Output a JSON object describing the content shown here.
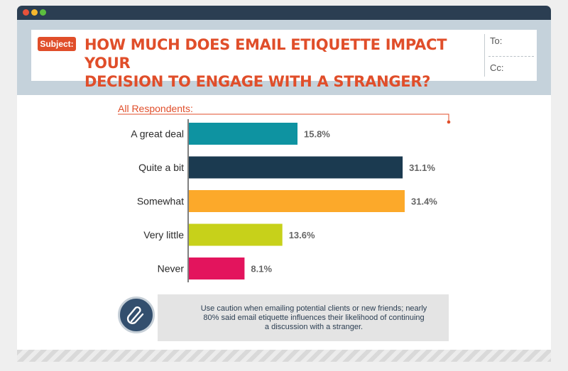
{
  "window": {
    "controls": [
      "close-dot",
      "minimize-dot",
      "maximize-dot"
    ]
  },
  "email": {
    "subject_label": "Subject:",
    "subject_line1": "HOW MUCH DOES EMAIL ETIQUETTE IMPACT YOUR",
    "subject_line2": "DECISION TO ENGAGE WITH A STRANGER?",
    "to_label": "To:",
    "cc_label": "Cc:"
  },
  "chart_data": {
    "type": "bar",
    "orientation": "horizontal",
    "title": "All Respondents:",
    "categories": [
      "A great deal",
      "Quite a bit",
      "Somewhat",
      "Very little",
      "Never"
    ],
    "values": [
      15.8,
      31.1,
      31.4,
      13.6,
      8.1
    ],
    "value_labels": [
      "15.8%",
      "31.1%",
      "31.4%",
      "13.6%",
      "8.1%"
    ],
    "colors": [
      "#0e93a1",
      "#1b3a50",
      "#fca92a",
      "#c7d11a",
      "#e3145d"
    ],
    "unit": "%",
    "xlim": [
      0,
      32
    ],
    "grid": false
  },
  "callout": {
    "icon": "paperclip-icon",
    "text_line1": "Use caution when emailing potential clients or new friends; nearly",
    "text_line2": "80% said email etiquette influences their likelihood of continuing",
    "text_line3": "a discussion with a stranger."
  },
  "colors": {
    "accent": "#e04e2a",
    "titlebar": "#2b3e52",
    "header_bg": "#c5d2db"
  }
}
